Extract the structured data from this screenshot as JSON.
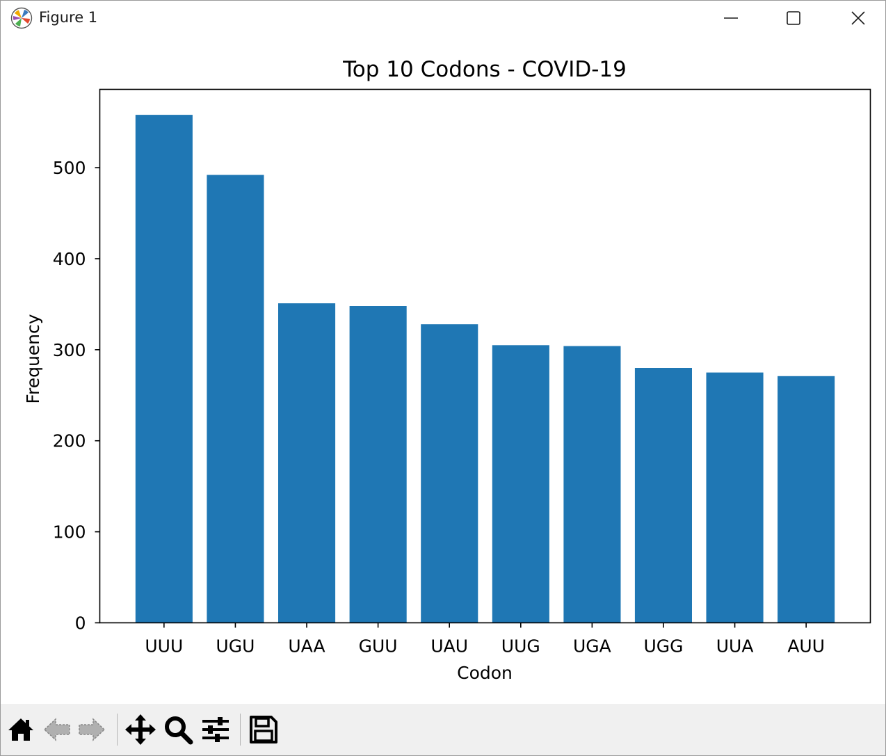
{
  "window": {
    "title": "Figure 1",
    "icon": "matplotlib-logo-icon",
    "controls": [
      "minimize-icon",
      "maximize-icon",
      "close-icon"
    ]
  },
  "toolbar": {
    "buttons": [
      {
        "name": "home",
        "icon": "home-icon"
      },
      {
        "name": "back",
        "icon": "back-arrow-icon"
      },
      {
        "name": "forward",
        "icon": "forward-arrow-icon"
      },
      {
        "name": "pan",
        "icon": "move-icon"
      },
      {
        "name": "zoom",
        "icon": "zoom-icon"
      },
      {
        "name": "configure-subplots",
        "icon": "sliders-icon"
      },
      {
        "name": "save",
        "icon": "save-icon"
      }
    ]
  },
  "chart_data": {
    "type": "bar",
    "title": "Top 10 Codons - COVID-19",
    "xlabel": "Codon",
    "ylabel": "Frequency",
    "categories": [
      "UUU",
      "UGU",
      "UAA",
      "GUU",
      "UAU",
      "UUG",
      "UGA",
      "UGG",
      "UUA",
      "AUU"
    ],
    "values": [
      558,
      492,
      351,
      348,
      328,
      305,
      304,
      280,
      275,
      271
    ],
    "yticks": [
      0,
      100,
      200,
      300,
      400,
      500
    ],
    "ylim": [
      0,
      586
    ],
    "bar_color": "#1f77b4",
    "grid": false,
    "legend": false
  }
}
